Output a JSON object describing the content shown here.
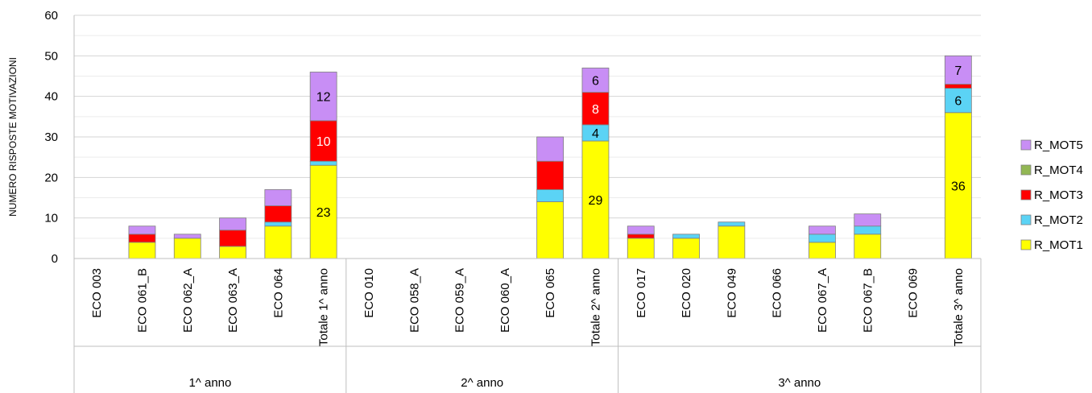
{
  "chart_data": {
    "type": "bar",
    "stacked": true,
    "ylabel": "NUMERO RISPOSTE MOTIVAZIONI",
    "ylim": [
      0,
      60
    ],
    "yticks": [
      0,
      10,
      20,
      30,
      40,
      50,
      60
    ],
    "grid": true,
    "legend_position": "right",
    "categories": [
      "ECO 003",
      "ECO 061_B",
      "ECO 062_A",
      "ECO 063_A",
      "ECO 064",
      "Totale 1^ anno",
      "ECO 010",
      "ECO 058_A",
      "ECO 059_A",
      "ECO 060_A",
      "ECO 065",
      "Totale 2^ anno",
      "ECO 017",
      "ECO 020",
      "ECO 049",
      "ECO 066",
      "ECO 067_A",
      "ECO 067_B",
      "ECO 069",
      "Totale 3^ anno"
    ],
    "groups": [
      {
        "label": "1^ anno",
        "start": 0,
        "count": 6
      },
      {
        "label": "2^ anno",
        "start": 6,
        "count": 6
      },
      {
        "label": "3^ anno",
        "start": 12,
        "count": 8
      }
    ],
    "series": [
      {
        "name": "R_MOT1",
        "color": "#ffff00",
        "values": [
          0,
          4,
          5,
          3,
          8,
          23,
          0,
          0,
          0,
          0,
          14,
          29,
          5,
          5,
          8,
          0,
          4,
          6,
          0,
          36
        ]
      },
      {
        "name": "R_MOT2",
        "color": "#5bd3f5",
        "values": [
          0,
          0,
          0,
          0,
          1,
          1,
          0,
          0,
          0,
          0,
          3,
          4,
          0,
          1,
          1,
          0,
          2,
          2,
          0,
          6
        ]
      },
      {
        "name": "R_MOT3",
        "color": "#ff0000",
        "values": [
          0,
          2,
          0,
          4,
          4,
          10,
          0,
          0,
          0,
          0,
          7,
          8,
          1,
          0,
          0,
          0,
          0,
          0,
          0,
          1
        ]
      },
      {
        "name": "R_MOT4",
        "color": "#92b753",
        "values": [
          0,
          0,
          0,
          0,
          0,
          0,
          0,
          0,
          0,
          0,
          0,
          0,
          0,
          0,
          0,
          0,
          0,
          0,
          0,
          0
        ]
      },
      {
        "name": "R_MOT5",
        "color": "#c88ef5",
        "values": [
          0,
          2,
          1,
          3,
          4,
          12,
          0,
          0,
          0,
          0,
          6,
          6,
          2,
          0,
          0,
          0,
          2,
          3,
          0,
          7
        ]
      }
    ],
    "data_labels": [
      {
        "category": "Totale 1^ anno",
        "series": "R_MOT1",
        "text": "23",
        "color": "#000000"
      },
      {
        "category": "Totale 1^ anno",
        "series": "R_MOT3",
        "text": "10",
        "color": "#ffffff"
      },
      {
        "category": "Totale 1^ anno",
        "series": "R_MOT5",
        "text": "12",
        "color": "#000000"
      },
      {
        "category": "Totale 2^ anno",
        "series": "R_MOT1",
        "text": "29",
        "color": "#000000"
      },
      {
        "category": "Totale 2^ anno",
        "series": "R_MOT2",
        "text": "4",
        "color": "#000000"
      },
      {
        "category": "Totale 2^ anno",
        "series": "R_MOT3",
        "text": "8",
        "color": "#ffffff"
      },
      {
        "category": "Totale 2^ anno",
        "series": "R_MOT5",
        "text": "6",
        "color": "#000000"
      },
      {
        "category": "Totale 3^ anno",
        "series": "R_MOT1",
        "text": "36",
        "color": "#000000"
      },
      {
        "category": "Totale 3^ anno",
        "series": "R_MOT2",
        "text": "6",
        "color": "#000000"
      },
      {
        "category": "Totale 3^ anno",
        "series": "R_MOT5",
        "text": "7",
        "color": "#000000"
      }
    ]
  }
}
